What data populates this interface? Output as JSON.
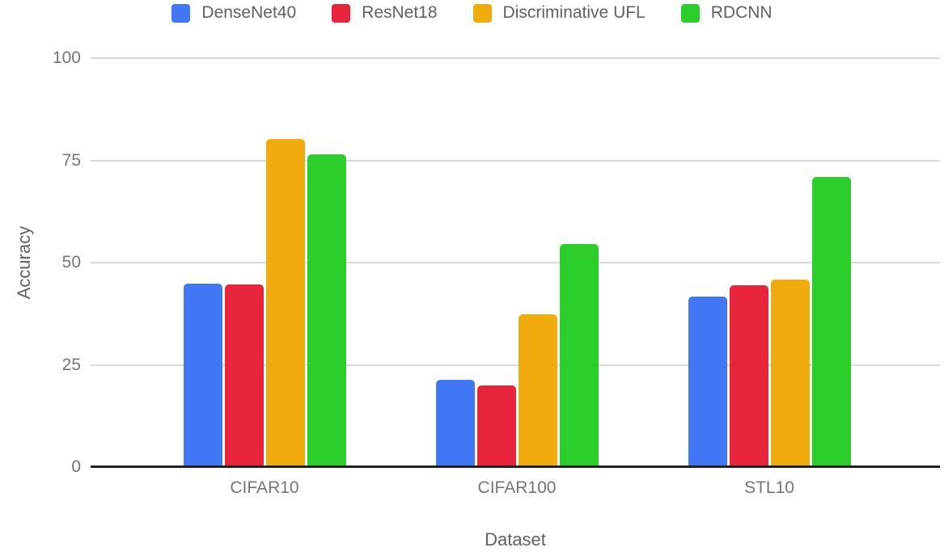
{
  "chart_data": {
    "type": "bar",
    "title": "",
    "categories": [
      "CIFAR10",
      "CIFAR100",
      "STL10"
    ],
    "series": [
      {
        "name": "DenseNet40",
        "color": "#4177F4",
        "values": [
          44.8,
          21.4,
          41.8
        ]
      },
      {
        "name": "ResNet18",
        "color": "#E8253A",
        "values": [
          44.7,
          20.0,
          44.5
        ]
      },
      {
        "name": "Discriminative UFL",
        "color": "#F2AB0D",
        "values": [
          80.2,
          37.4,
          45.8
        ]
      },
      {
        "name": "RDCNN",
        "color": "#2CCE2C",
        "values": [
          76.5,
          54.6,
          71.0
        ]
      }
    ],
    "xlabel": "Dataset",
    "ylabel": "Accuracy",
    "ylim": [
      0,
      100
    ],
    "yticks": [
      0,
      25,
      50,
      75,
      100
    ],
    "legend_position": "top",
    "grid": true
  },
  "colors": {
    "background": "#FFFFFF",
    "gridline": "#D9D9D9",
    "axis_line": "#212121",
    "tick_label": "#757575",
    "axis_title": "#616161",
    "legend_label": "#616161"
  }
}
